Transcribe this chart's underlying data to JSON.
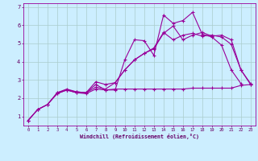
{
  "bg_color": "#cceeff",
  "line_color": "#990099",
  "grid_color": "#aacccc",
  "xlabel": "Windchill (Refroidissement éolien,°C)",
  "xlabel_color": "#660066",
  "tick_color": "#660066",
  "xlim": [
    -0.5,
    23.5
  ],
  "ylim": [
    0.5,
    7.2
  ],
  "yticks": [
    1,
    2,
    3,
    4,
    5,
    6,
    7
  ],
  "xticks": [
    0,
    1,
    2,
    3,
    4,
    5,
    6,
    7,
    8,
    9,
    10,
    11,
    12,
    13,
    14,
    15,
    16,
    17,
    18,
    19,
    20,
    21,
    22,
    23
  ],
  "line1_x": [
    0,
    1,
    2,
    3,
    4,
    5,
    6,
    7,
    8,
    9,
    10,
    11,
    12,
    13,
    14,
    15,
    16,
    17,
    18,
    19,
    20,
    21,
    22
  ],
  "line1_y": [
    0.78,
    1.38,
    1.65,
    2.25,
    2.45,
    2.3,
    2.3,
    2.75,
    2.45,
    2.45,
    4.1,
    5.2,
    5.15,
    4.35,
    6.55,
    6.1,
    6.25,
    6.7,
    5.5,
    5.35,
    4.9,
    3.55,
    2.8
  ],
  "line2_x": [
    0,
    1,
    2,
    3,
    4,
    5,
    6,
    7,
    8,
    9,
    10,
    11,
    12,
    13,
    14,
    15,
    16,
    17,
    18,
    19,
    20,
    21,
    22,
    23
  ],
  "line2_y": [
    0.78,
    1.38,
    1.65,
    2.25,
    2.45,
    2.3,
    2.25,
    2.5,
    2.45,
    2.5,
    2.5,
    2.5,
    2.5,
    2.5,
    2.5,
    2.5,
    2.5,
    2.55,
    2.55,
    2.55,
    2.55,
    2.55,
    2.7,
    2.75
  ],
  "line3_x": [
    0,
    1,
    2,
    3,
    4,
    5,
    6,
    7,
    8,
    9,
    10,
    11,
    12,
    13,
    14,
    15,
    16,
    17,
    18,
    19,
    20,
    21,
    22,
    23
  ],
  "line3_y": [
    0.78,
    1.38,
    1.65,
    2.3,
    2.5,
    2.35,
    2.3,
    2.6,
    2.5,
    2.85,
    3.55,
    4.1,
    4.45,
    4.75,
    5.6,
    5.2,
    5.45,
    5.55,
    5.4,
    5.45,
    5.35,
    4.95,
    3.55,
    2.75
  ],
  "line4_x": [
    3,
    4,
    5,
    6,
    7,
    8,
    9,
    10,
    11,
    12,
    13,
    14,
    15,
    16,
    17,
    18,
    19,
    20,
    21,
    22,
    23
  ],
  "line4_y": [
    2.3,
    2.45,
    2.35,
    2.3,
    2.9,
    2.75,
    2.85,
    3.55,
    4.1,
    4.45,
    4.7,
    5.55,
    5.95,
    5.2,
    5.45,
    5.6,
    5.4,
    5.45,
    5.2,
    3.55,
    2.8
  ]
}
